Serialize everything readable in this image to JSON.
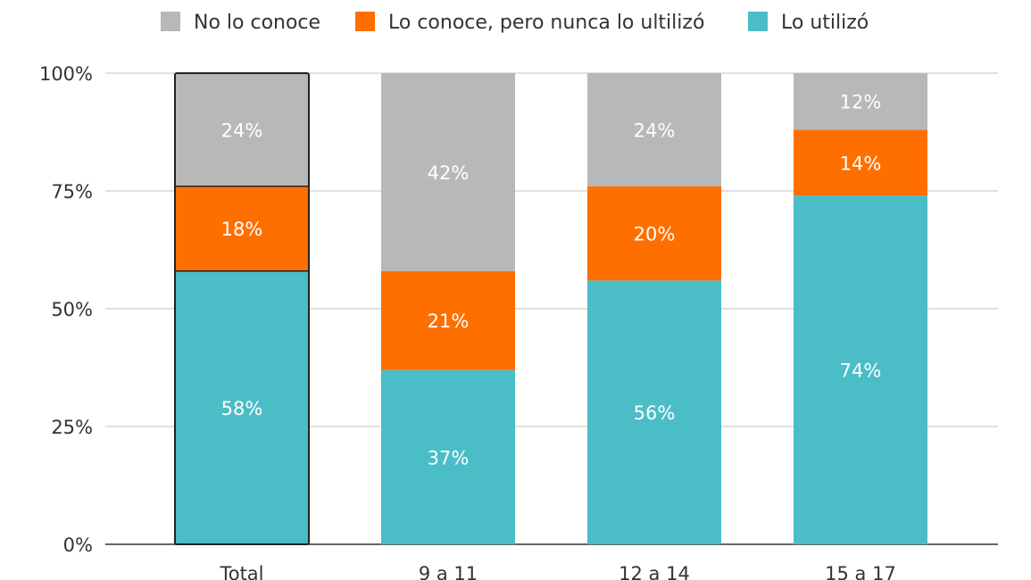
{
  "chart_data": {
    "type": "bar",
    "stacked": true,
    "categories": [
      "Total",
      "9 a 11",
      "12 a 14",
      "15 a 17"
    ],
    "series": [
      {
        "name": "Lo utilizó",
        "color": "#4bbdc7",
        "values": [
          58,
          37,
          56,
          74
        ],
        "labels": [
          "58%",
          "37%",
          "56%",
          "74%"
        ]
      },
      {
        "name": "Lo conoce, pero nunca lo ultilizó",
        "color": "#ff6f00",
        "values": [
          18,
          21,
          20,
          14
        ],
        "labels": [
          "18%",
          "21%",
          "20%",
          "14%"
        ]
      },
      {
        "name": "No lo conoce",
        "color": "#b8b8b8",
        "values": [
          24,
          42,
          24,
          12
        ],
        "labels": [
          "24%",
          "42%",
          "24%",
          "12%"
        ]
      }
    ],
    "legend_order": [
      2,
      1,
      0
    ],
    "legend_position": "top",
    "ylim": [
      0,
      100
    ],
    "yticks": [
      0,
      25,
      50,
      75,
      100
    ],
    "ytick_labels": [
      "0%",
      "25%",
      "50%",
      "75%",
      "100%"
    ],
    "grid": true,
    "highlighted_category": "Total",
    "title": "",
    "xlabel": "",
    "ylabel": ""
  }
}
